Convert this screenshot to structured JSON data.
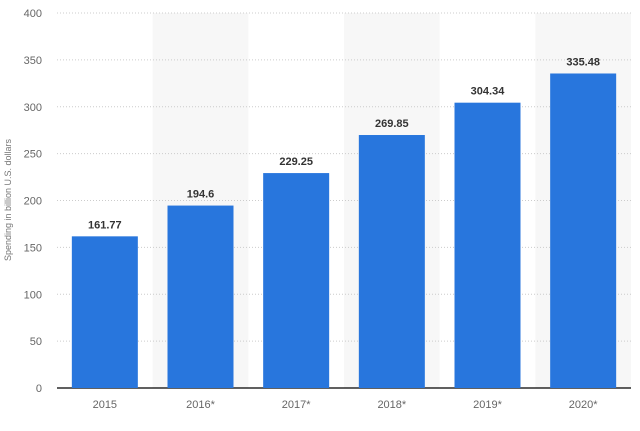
{
  "chart_data": {
    "type": "bar",
    "categories": [
      "2015",
      "2016*",
      "2017*",
      "2018*",
      "2019*",
      "2020*"
    ],
    "values": [
      161.77,
      194.6,
      229.25,
      269.85,
      304.34,
      335.48
    ],
    "value_labels": [
      "161.77",
      "194.6",
      "229.25",
      "269.85",
      "304.34",
      "335.48"
    ],
    "title": "",
    "xlabel": "",
    "ylabel": "Spending in billion U.S. dollars",
    "ylim": [
      0,
      400
    ],
    "yticks": [
      0,
      50,
      100,
      150,
      200,
      250,
      300,
      350,
      400
    ],
    "grid": "horizontal dotted",
    "alternating_bands": true,
    "legend": "none",
    "colors": {
      "bar": "#2876dd",
      "band": "#f7f7f7",
      "grid": "#cccccc",
      "axis": "#000000"
    }
  }
}
